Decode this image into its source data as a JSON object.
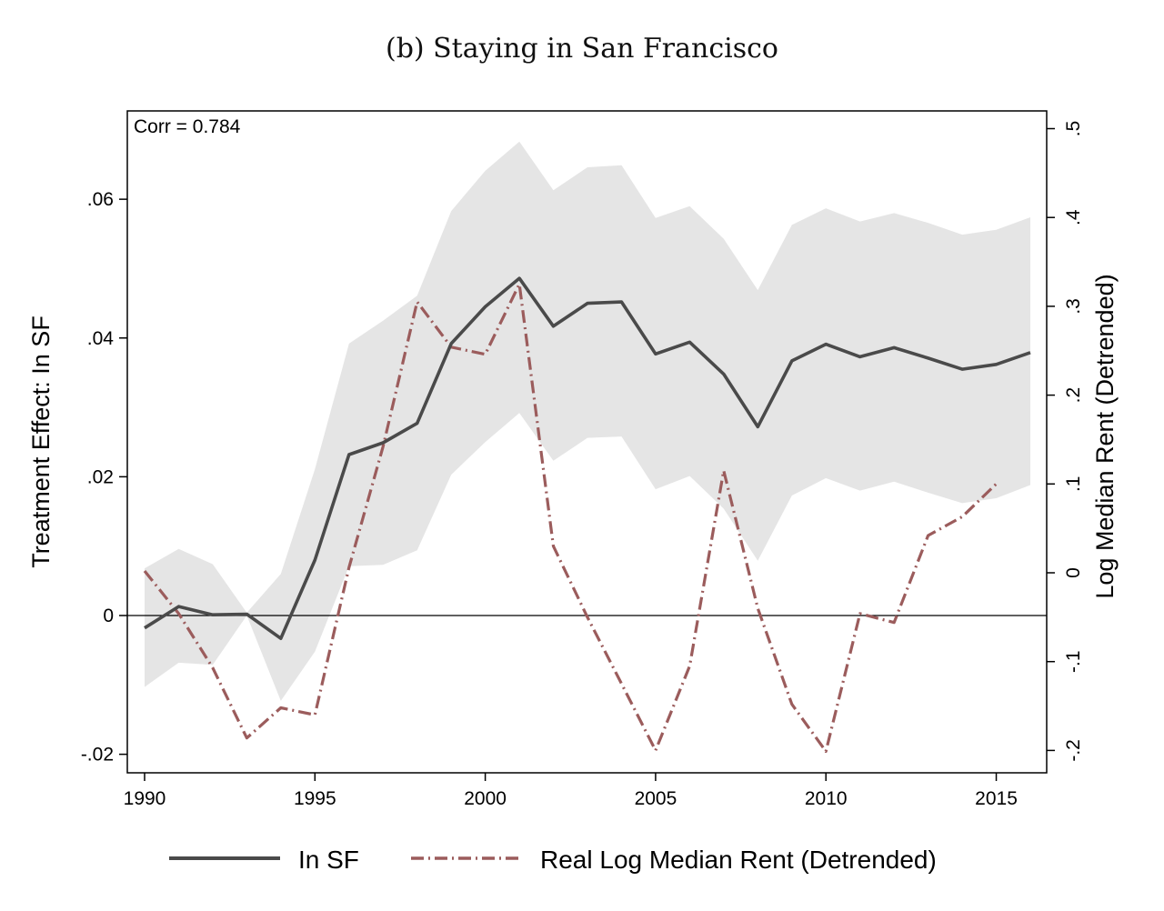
{
  "chart_data": {
    "type": "line",
    "title": "(b) Staying in San Francisco",
    "annotation": "Corr = 0.784",
    "xlabel": "",
    "ylabel": "Treatment Effect: In SF",
    "y2label": "Log Median Rent (Detrended)",
    "xlim": [
      1990,
      2016
    ],
    "ylim": [
      -0.022,
      0.072
    ],
    "y2lim": [
      -0.22,
      0.51
    ],
    "x_ticks": [
      1990,
      1995,
      2000,
      2005,
      2010,
      2015
    ],
    "x_tick_labels": [
      "1990",
      "1995",
      "2000",
      "2005",
      "2010",
      "2015"
    ],
    "y_ticks": [
      -0.02,
      0,
      0.02,
      0.04,
      0.06
    ],
    "y_tick_labels": [
      "-.02",
      "0",
      ".02",
      ".04",
      ".06"
    ],
    "y2_ticks": [
      -0.2,
      -0.1,
      0,
      0.1,
      0.2,
      0.3,
      0.4,
      0.5
    ],
    "y2_tick_labels": [
      "-.2",
      "-.1",
      "0",
      ".1",
      ".2",
      ".3",
      ".4",
      ".5"
    ],
    "reference_line_y": 0,
    "legend": [
      "In SF",
      "Real Log Median Rent (Detrended)"
    ],
    "colors": {
      "in_sf": "#4a4a4a",
      "rent": "#9b5c5c",
      "ci_band": "#e5e5e5",
      "axis": "#000000"
    },
    "series": [
      {
        "name": "In SF",
        "axis": "left",
        "x": [
          1990,
          1991,
          1992,
          1993,
          1994,
          1995,
          1996,
          1997,
          1998,
          1999,
          2000,
          2001,
          2002,
          2003,
          2004,
          2005,
          2006,
          2007,
          2008,
          2009,
          2010,
          2011,
          2012,
          2013,
          2014,
          2015,
          2016
        ],
        "values": [
          -0.0018,
          0.0013,
          0.0001,
          0.0002,
          -0.0033,
          0.008,
          0.0232,
          0.0249,
          0.0277,
          0.0392,
          0.0445,
          0.0486,
          0.0417,
          0.045,
          0.0452,
          0.0377,
          0.0394,
          0.0348,
          0.0272,
          0.0367,
          0.0391,
          0.0373,
          0.0386,
          0.0371,
          0.0355,
          0.0362,
          0.0379
        ],
        "ci_lower": [
          -0.0103,
          -0.0068,
          -0.0071,
          0.0,
          -0.0123,
          -0.0052,
          0.0071,
          0.0073,
          0.0094,
          0.0203,
          0.025,
          0.0292,
          0.0223,
          0.0256,
          0.0258,
          0.0182,
          0.0201,
          0.0154,
          0.0079,
          0.0173,
          0.0198,
          0.018,
          0.0193,
          0.0177,
          0.0162,
          0.0169,
          0.0188
        ],
        "ci_upper": [
          0.0068,
          0.0096,
          0.0074,
          0.0004,
          0.006,
          0.0211,
          0.0392,
          0.0425,
          0.0461,
          0.0583,
          0.0641,
          0.0683,
          0.0613,
          0.0646,
          0.0649,
          0.0573,
          0.059,
          0.0543,
          0.0469,
          0.0563,
          0.0587,
          0.0568,
          0.058,
          0.0566,
          0.0549,
          0.0556,
          0.0574
        ]
      },
      {
        "name": "Real Log Median Rent (Detrended)",
        "axis": "right",
        "x": [
          1990,
          1991,
          1992,
          1993,
          1994,
          1995,
          1996,
          1997,
          1998,
          1999,
          2000,
          2001,
          2002,
          2003,
          2004,
          2005,
          2006,
          2007,
          2008,
          2009,
          2010,
          2011,
          2012,
          2013,
          2014,
          2015
        ],
        "values": [
          0.002,
          -0.046,
          -0.107,
          -0.186,
          -0.152,
          -0.16,
          0.006,
          0.142,
          0.305,
          0.254,
          0.246,
          0.325,
          0.03,
          -0.05,
          -0.125,
          -0.2,
          -0.105,
          0.115,
          -0.04,
          -0.148,
          -0.201,
          -0.046,
          -0.056,
          0.042,
          0.063,
          0.1
        ]
      }
    ]
  }
}
